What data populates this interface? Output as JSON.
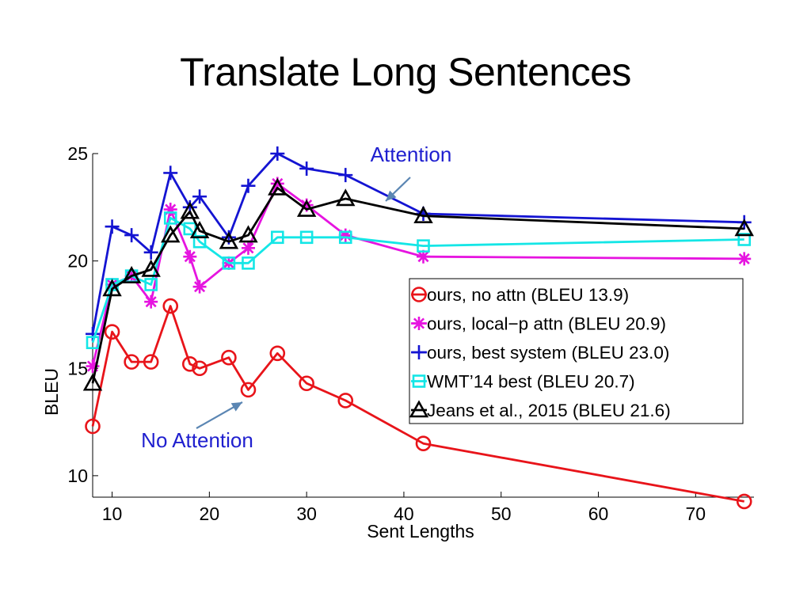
{
  "slide": {
    "title": "Translate Long Sentences"
  },
  "chart_data": {
    "type": "line",
    "xlabel": "Sent Lengths",
    "ylabel": "BLEU",
    "xlim": [
      8,
      76
    ],
    "ylim": [
      9,
      25
    ],
    "xticks": [
      10,
      20,
      30,
      40,
      50,
      60,
      70
    ],
    "yticks": [
      10,
      15,
      20,
      25
    ],
    "x": [
      8,
      10,
      12,
      14,
      16,
      18,
      19,
      22,
      24,
      27,
      30,
      34,
      42,
      75
    ],
    "legend_position": "right",
    "series": [
      {
        "name": "ours, no attn (BLEU 13.9)",
        "color": "#e8141a",
        "marker": "circle",
        "values": [
          12.3,
          16.7,
          15.3,
          15.3,
          17.9,
          15.2,
          15.0,
          15.5,
          14.0,
          15.7,
          14.3,
          13.5,
          11.5,
          8.8
        ]
      },
      {
        "name": "ours, local−p attn (BLEU 20.9)",
        "color": "#e614e0",
        "marker": "asterisk",
        "values": [
          15.1,
          18.9,
          19.3,
          18.1,
          22.4,
          20.2,
          18.8,
          19.9,
          20.6,
          23.6,
          22.6,
          21.2,
          20.2,
          20.1
        ]
      },
      {
        "name": "ours, best system (BLEU 23.0)",
        "color": "#1414d2",
        "marker": "plus",
        "values": [
          16.6,
          21.6,
          21.2,
          20.4,
          24.1,
          22.5,
          23.0,
          21.1,
          23.5,
          25.0,
          24.3,
          24.0,
          22.2,
          21.8
        ]
      },
      {
        "name": "WMT’14 best (BLEU 20.7)",
        "color": "#14e6e6",
        "marker": "square",
        "values": [
          16.2,
          18.9,
          19.3,
          18.9,
          22.0,
          21.5,
          20.9,
          19.9,
          19.9,
          21.1,
          21.1,
          21.1,
          20.7,
          21.0
        ]
      },
      {
        "name": "Jeans et al., 2015 (BLEU 21.6)",
        "color": "#000000",
        "marker": "triangle",
        "values": [
          14.3,
          18.7,
          19.3,
          19.6,
          21.2,
          22.3,
          21.4,
          20.9,
          21.2,
          23.4,
          22.4,
          22.9,
          22.1,
          21.5
        ]
      }
    ],
    "annotations": [
      {
        "text": "Attention"
      },
      {
        "text": "No Attention"
      }
    ]
  }
}
